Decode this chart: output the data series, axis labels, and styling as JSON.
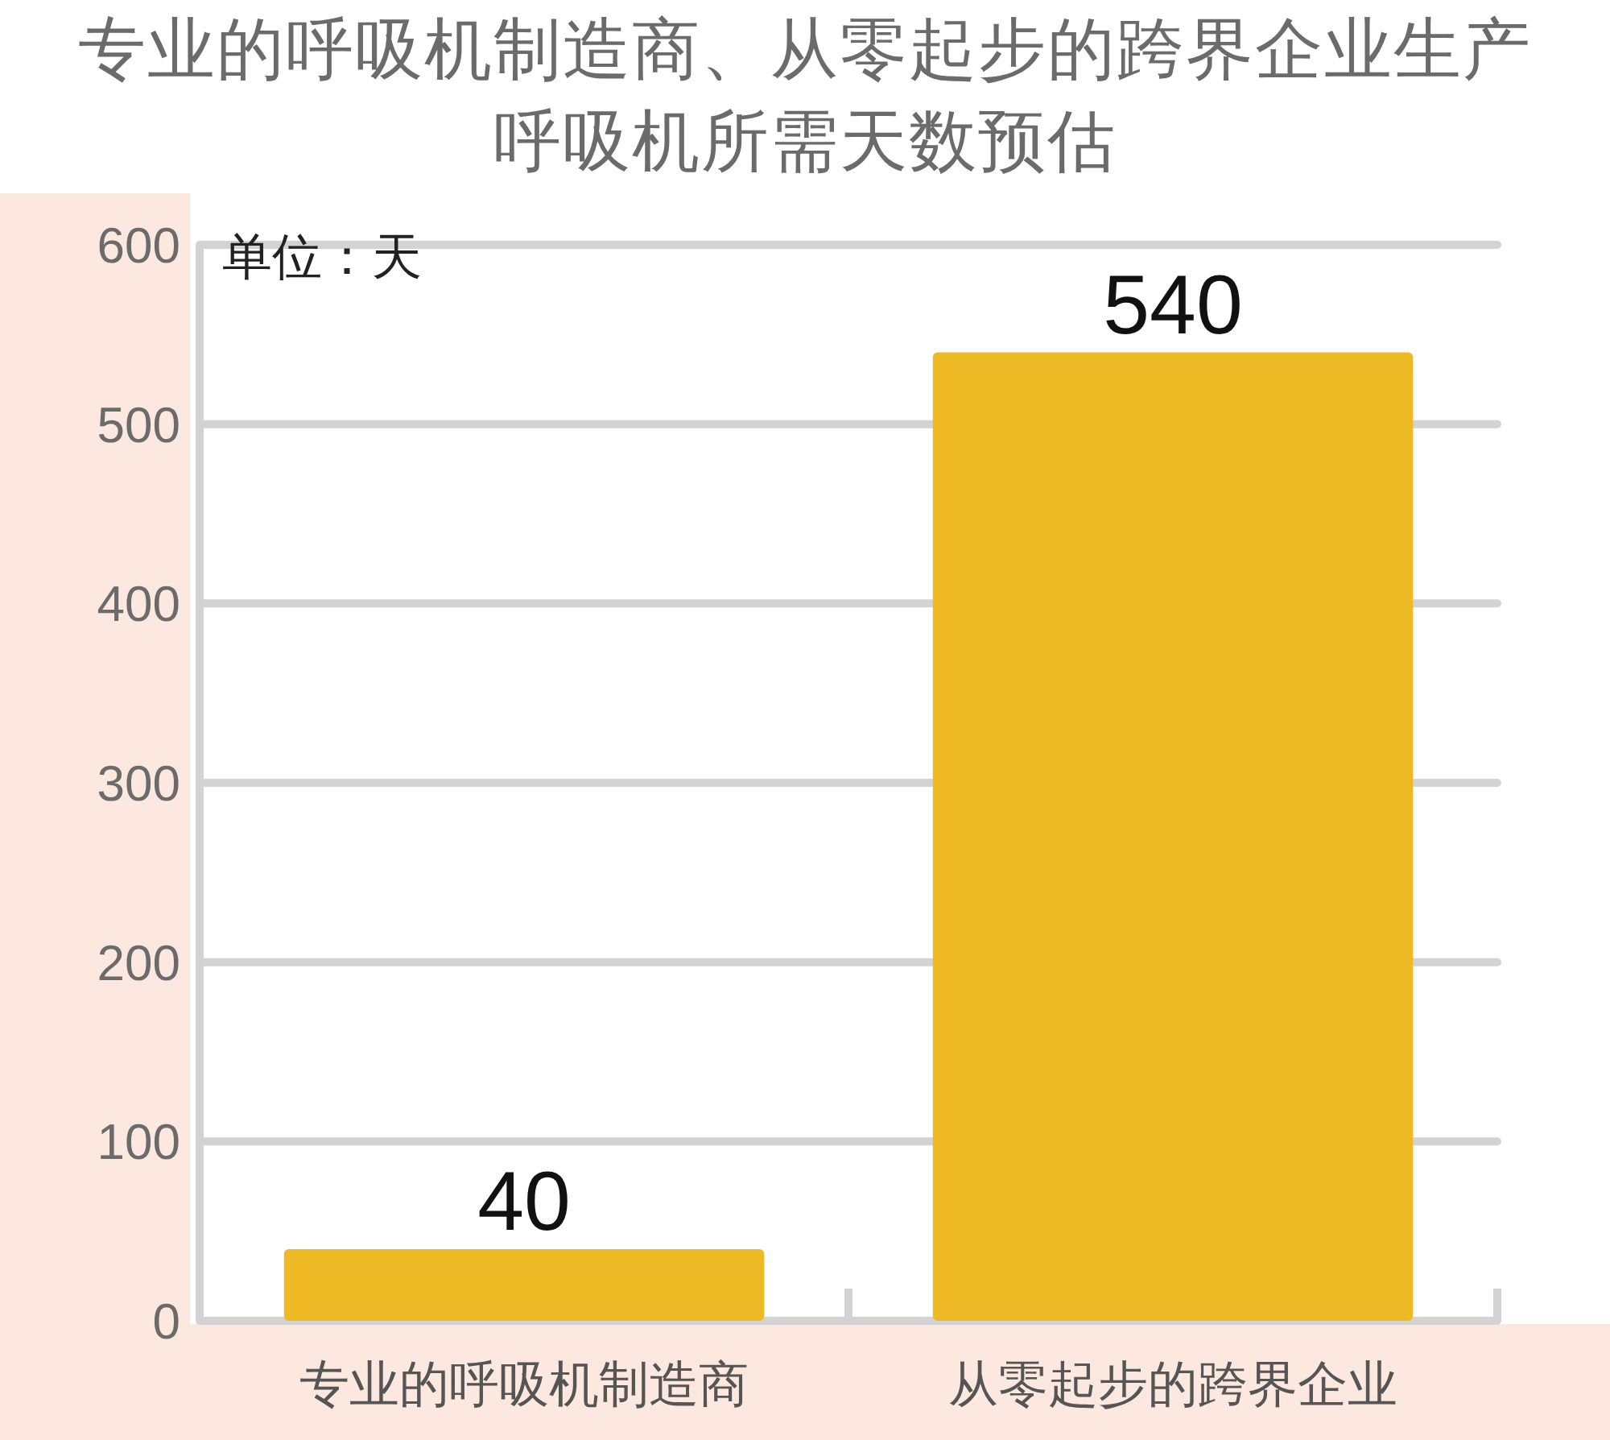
{
  "chart_data": {
    "type": "bar",
    "title": "专业的呼吸机制造商、从零起步的跨界企业生产呼吸机所需天数预估",
    "categories": [
      "专业的呼吸机制造商",
      "从零起步的跨界企业"
    ],
    "values": [
      40,
      540
    ],
    "color": "#edb925",
    "ylim": [
      0,
      600
    ],
    "yticks": [
      0,
      100,
      200,
      300,
      400,
      500,
      600
    ],
    "grid": "y",
    "data_labels": true,
    "annotations": [
      "单位：天"
    ]
  }
}
